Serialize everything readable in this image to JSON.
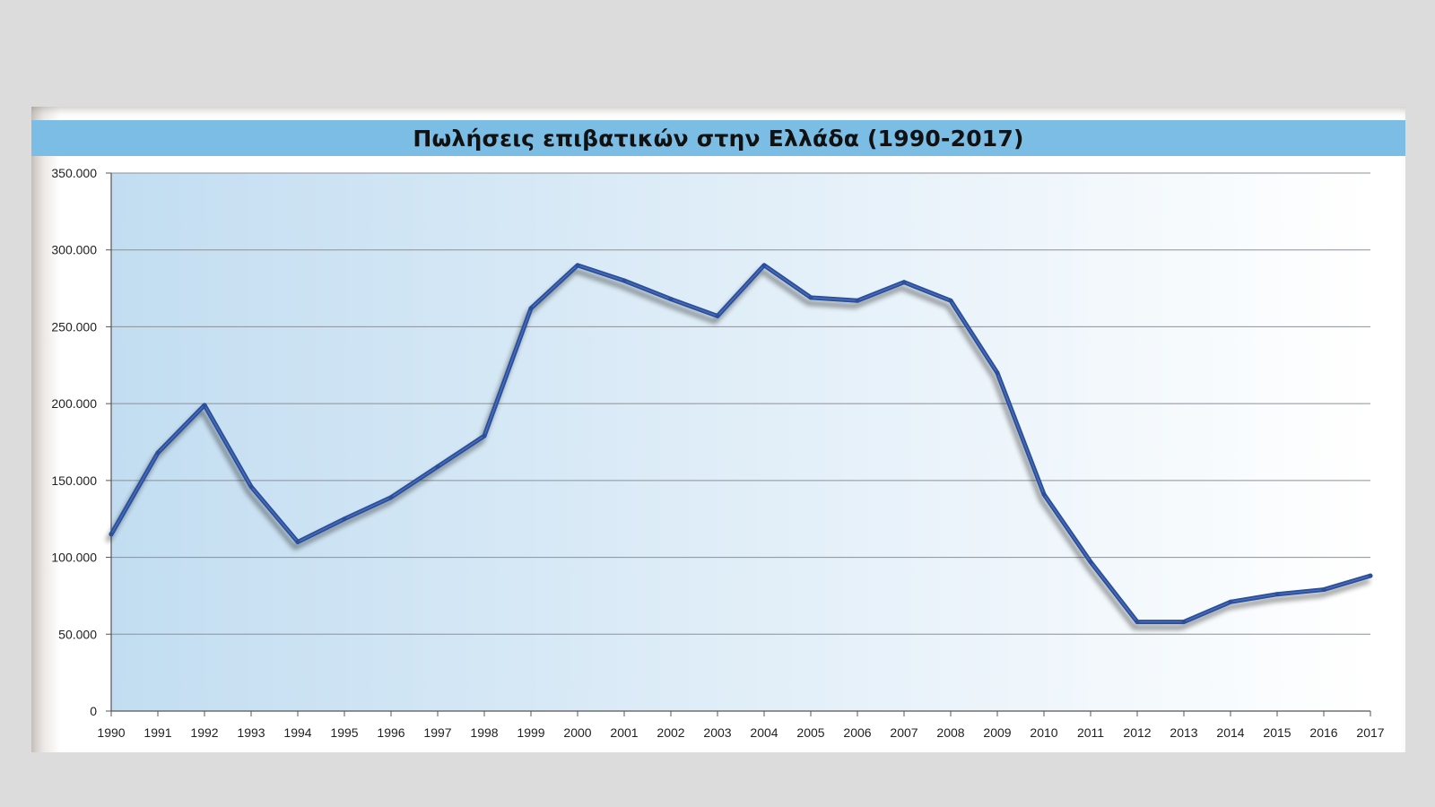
{
  "chart_data": {
    "type": "line",
    "title": "Πωλήσεις επιβατικών στην Ελλάδα (1990-2017)",
    "xlabel": "",
    "ylabel": "",
    "categories": [
      "1990",
      "1991",
      "1992",
      "1993",
      "1994",
      "1995",
      "1996",
      "1997",
      "1998",
      "1999",
      "2000",
      "2001",
      "2002",
      "2003",
      "2004",
      "2005",
      "2006",
      "2007",
      "2008",
      "2009",
      "2010",
      "2011",
      "2012",
      "2013",
      "2014",
      "2015",
      "2016",
      "2017"
    ],
    "series": [
      {
        "values": [
          115000,
          168000,
          199000,
          146000,
          110000,
          125000,
          139000,
          159000,
          179000,
          262000,
          290000,
          280000,
          268000,
          257000,
          290000,
          269000,
          267000,
          279000,
          267000,
          220000,
          141000,
          97000,
          58000,
          58000,
          71000,
          76000,
          79000,
          88000
        ]
      }
    ],
    "ylim": [
      0,
      350000
    ],
    "yticks": [
      0,
      50000,
      100000,
      150000,
      200000,
      250000,
      300000,
      350000
    ],
    "ytick_labels": [
      "0",
      "50.000",
      "100.000",
      "150.000",
      "200.000",
      "250.000",
      "300.000",
      "350.000"
    ],
    "grid": true,
    "legend": "none",
    "colors": {
      "line": "#2c4f9c",
      "title_bar": "#7bbde4",
      "plot_gradient_start": "#c2ddf1",
      "plot_gradient_end": "#ffffff",
      "gridline": "#8c9198"
    }
  }
}
